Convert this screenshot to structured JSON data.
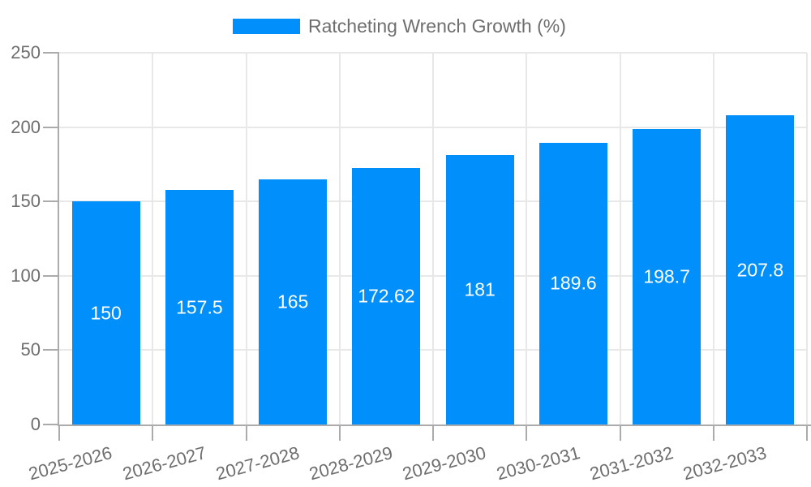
{
  "legend": {
    "label": "Ratcheting Wrench Growth (%)"
  },
  "colors": {
    "bar": "#008FFB",
    "axis_line": "#ababab",
    "grid_line": "#e8e8e8",
    "tick_label": "#6e6e6e",
    "value_label": "#ffffff",
    "background": "#ffffff"
  },
  "chart_data": {
    "type": "bar",
    "title": "",
    "series_name": "Ratcheting Wrench Growth (%)",
    "categories": [
      "2025-2026",
      "2026-2027",
      "2027-2028",
      "2028-2029",
      "2029-2030",
      "2030-2031",
      "2031-2032",
      "2032-2033"
    ],
    "values": [
      150,
      157.5,
      165,
      172.62,
      181,
      189.6,
      198.7,
      207.8
    ],
    "value_labels": [
      "150",
      "157.5",
      "165",
      "172.62",
      "181",
      "189.6",
      "198.7",
      "207.8"
    ],
    "xlabel": "",
    "ylabel": "",
    "ylim": [
      0,
      250
    ],
    "y_ticks": [
      0,
      50,
      100,
      150,
      200,
      250
    ],
    "grid": true,
    "legend_position": "top",
    "bar_color": "#008FFB"
  }
}
